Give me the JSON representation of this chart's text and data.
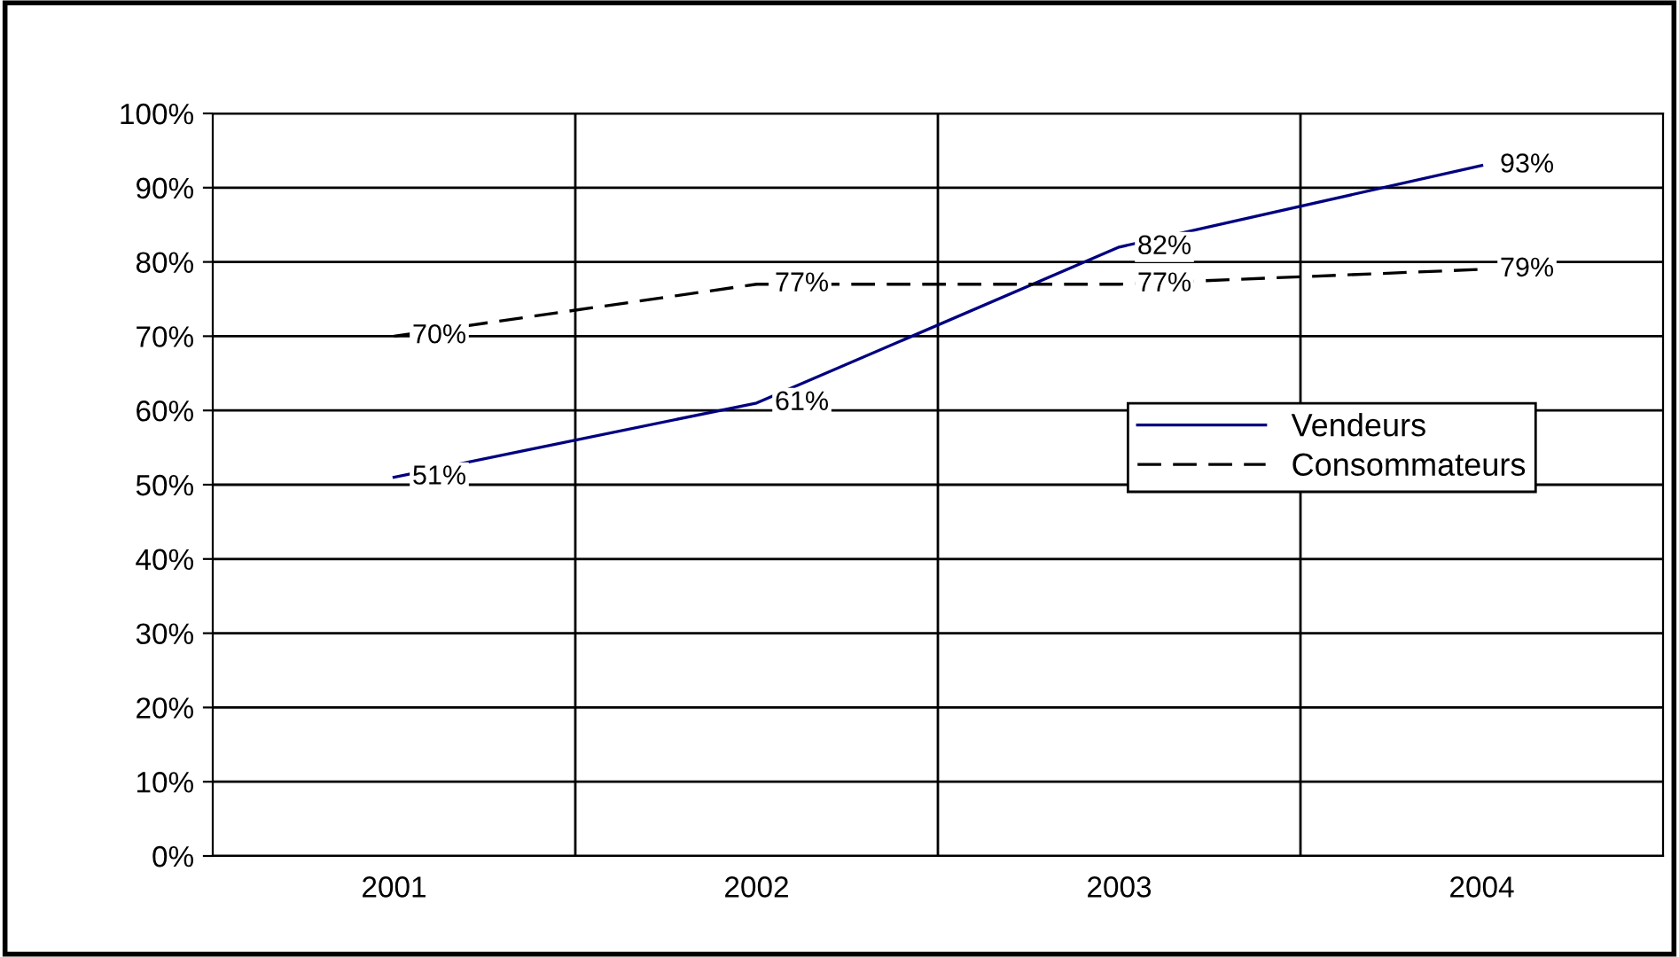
{
  "chart_data": {
    "type": "line",
    "categories": [
      "2001",
      "2002",
      "2003",
      "2004"
    ],
    "series": [
      {
        "name": "Vendeurs",
        "color": "#000080",
        "values": [
          51,
          61,
          82,
          93
        ],
        "line_style": "solid",
        "value_labels": [
          "51%",
          "61%",
          "82%",
          "93%"
        ]
      },
      {
        "name": "Consommateurs",
        "color": "#000000",
        "values": [
          70,
          77,
          77,
          79
        ],
        "line_style": "dashed",
        "value_labels": [
          "70%",
          "77%",
          "77%",
          "79%"
        ]
      }
    ],
    "ylim": [
      0,
      100
    ],
    "yticks": [
      {
        "value": 0,
        "label": "0%"
      },
      {
        "value": 10,
        "label": "10%"
      },
      {
        "value": 20,
        "label": "20%"
      },
      {
        "value": 30,
        "label": "30%"
      },
      {
        "value": 40,
        "label": "40%"
      },
      {
        "value": 50,
        "label": "50%"
      },
      {
        "value": 60,
        "label": "60%"
      },
      {
        "value": 70,
        "label": "70%"
      },
      {
        "value": 80,
        "label": "80%"
      },
      {
        "value": 90,
        "label": "90%"
      },
      {
        "value": 100,
        "label": "100%"
      }
    ],
    "grid": true,
    "legend": "right",
    "marker": "none"
  }
}
